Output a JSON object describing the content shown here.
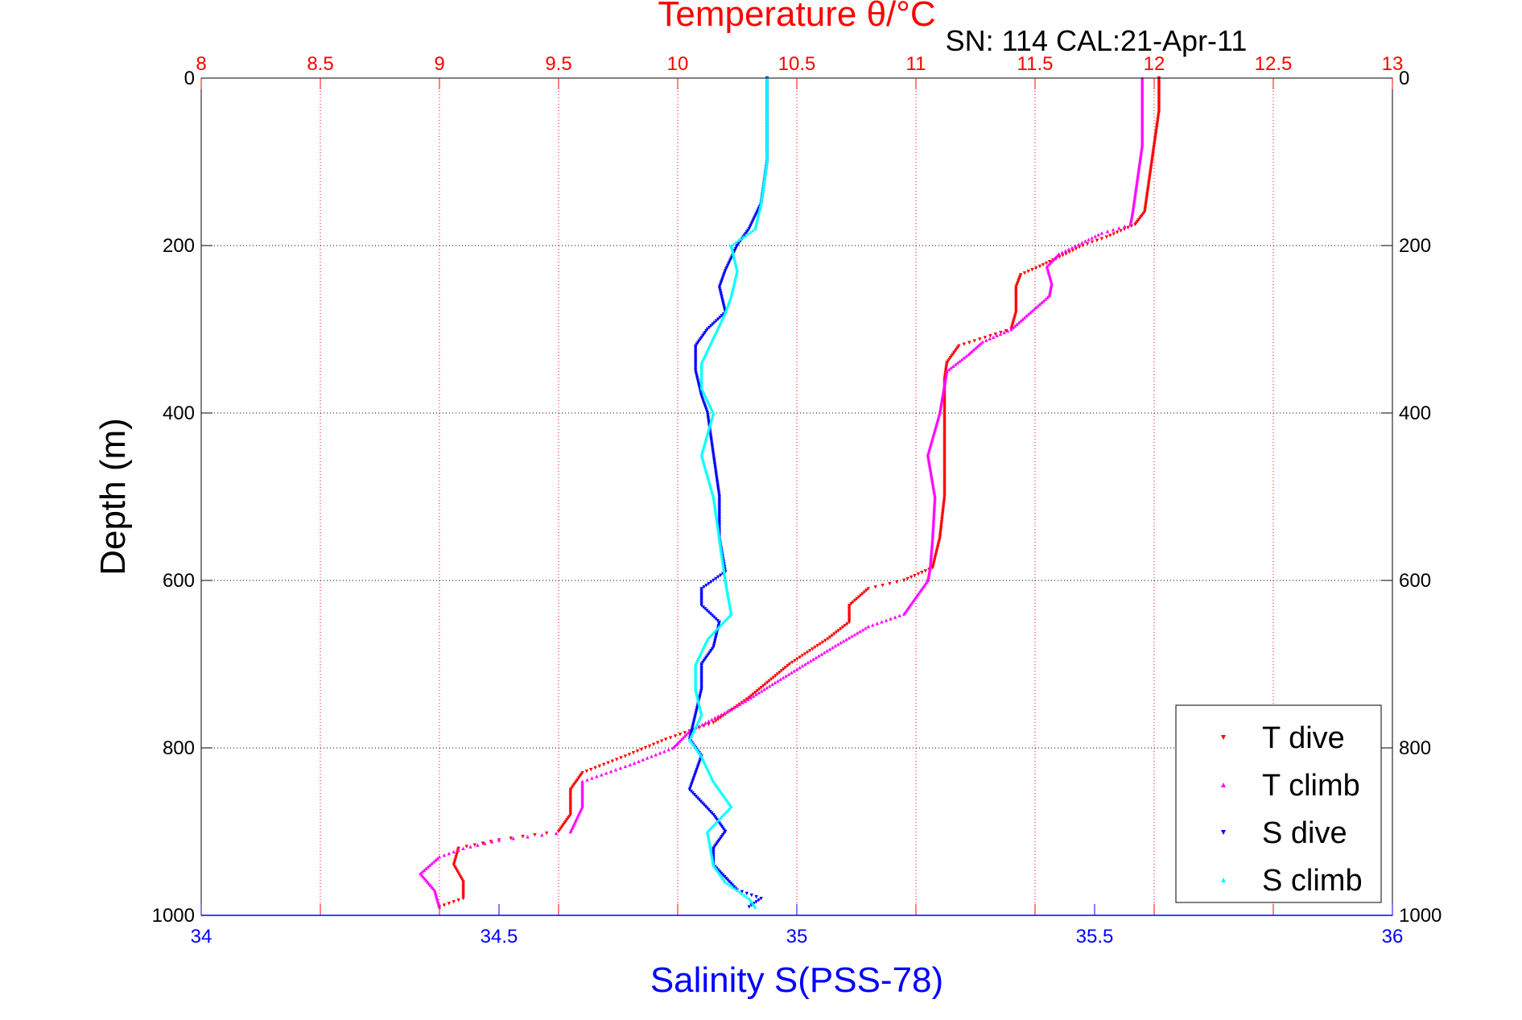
{
  "chart_data": {
    "type": "scatter",
    "title_top": "Temperature θ/°C",
    "subtitle": "SN: 114  CAL:21-Apr-11",
    "xlabel_bottom": "Salinity S(PSS-78)",
    "ylabel": "Depth (m)",
    "top_axis": {
      "label": "Temperature θ/°C",
      "lim": [
        8,
        13
      ],
      "ticks": [
        "8",
        "8.5",
        "9",
        "9.5",
        "10",
        "10.5",
        "11",
        "11.5",
        "12",
        "12.5",
        "13"
      ],
      "color": "#ff0000"
    },
    "bottom_axis": {
      "label": "Salinity S(PSS-78)",
      "lim": [
        34,
        36
      ],
      "ticks": [
        "34",
        "34.5",
        "35",
        "35.5",
        "36"
      ],
      "color": "#0000ff"
    },
    "y_axis": {
      "lim": [
        0,
        1000
      ],
      "reversed": true,
      "ticks": [
        "0",
        "200",
        "400",
        "600",
        "800",
        "1000"
      ]
    },
    "grid": true,
    "legend_position": "bottom-right",
    "series": [
      {
        "name": "T dive",
        "axis": "temperature",
        "color": "#ff0000",
        "marker": "triangle-down",
        "points": [
          [
            12.02,
            0
          ],
          [
            12.02,
            40
          ],
          [
            12.0,
            80
          ],
          [
            11.98,
            120
          ],
          [
            11.96,
            160
          ],
          [
            11.92,
            175
          ],
          [
            11.8,
            190
          ],
          [
            11.7,
            200
          ],
          [
            11.63,
            210
          ],
          [
            11.52,
            225
          ],
          [
            11.44,
            235
          ],
          [
            11.42,
            250
          ],
          [
            11.42,
            280
          ],
          [
            11.4,
            300
          ],
          [
            11.18,
            320
          ],
          [
            11.13,
            340
          ],
          [
            11.12,
            360
          ],
          [
            11.12,
            400
          ],
          [
            11.12,
            450
          ],
          [
            11.12,
            500
          ],
          [
            11.1,
            550
          ],
          [
            11.07,
            585
          ],
          [
            10.95,
            600
          ],
          [
            10.8,
            610
          ],
          [
            10.72,
            630
          ],
          [
            10.72,
            650
          ],
          [
            10.63,
            670
          ],
          [
            10.47,
            700
          ],
          [
            10.3,
            740
          ],
          [
            10.15,
            770
          ],
          [
            9.95,
            790
          ],
          [
            9.78,
            810
          ],
          [
            9.6,
            830
          ],
          [
            9.55,
            850
          ],
          [
            9.55,
            880
          ],
          [
            9.5,
            900
          ],
          [
            9.25,
            910
          ],
          [
            9.08,
            920
          ],
          [
            9.06,
            940
          ],
          [
            9.1,
            960
          ],
          [
            9.1,
            980
          ],
          [
            9.0,
            990
          ]
        ]
      },
      {
        "name": "T climb",
        "axis": "temperature",
        "color": "#ff00ff",
        "marker": "triangle-up",
        "points": [
          [
            11.95,
            0
          ],
          [
            11.95,
            40
          ],
          [
            11.95,
            80
          ],
          [
            11.93,
            120
          ],
          [
            11.91,
            160
          ],
          [
            11.9,
            175
          ],
          [
            11.78,
            185
          ],
          [
            11.6,
            210
          ],
          [
            11.55,
            225
          ],
          [
            11.57,
            245
          ],
          [
            11.56,
            260
          ],
          [
            11.48,
            280
          ],
          [
            11.4,
            300
          ],
          [
            11.28,
            315
          ],
          [
            11.22,
            330
          ],
          [
            11.13,
            350
          ],
          [
            11.1,
            400
          ],
          [
            11.05,
            450
          ],
          [
            11.08,
            500
          ],
          [
            11.07,
            550
          ],
          [
            11.06,
            585
          ],
          [
            11.05,
            600
          ],
          [
            10.95,
            640
          ],
          [
            10.8,
            655
          ],
          [
            10.65,
            680
          ],
          [
            10.42,
            720
          ],
          [
            10.25,
            750
          ],
          [
            10.05,
            780
          ],
          [
            9.98,
            800
          ],
          [
            9.8,
            820
          ],
          [
            9.6,
            840
          ],
          [
            9.6,
            870
          ],
          [
            9.55,
            900
          ],
          [
            9.25,
            910
          ],
          [
            9.1,
            920
          ],
          [
            9.0,
            930
          ],
          [
            8.92,
            950
          ],
          [
            8.98,
            970
          ],
          [
            9.0,
            990
          ]
        ]
      },
      {
        "name": "S dive",
        "axis": "salinity",
        "color": "#0000ff",
        "marker": "triangle-down",
        "points": [
          [
            34.95,
            0
          ],
          [
            34.95,
            50
          ],
          [
            34.95,
            100
          ],
          [
            34.94,
            150
          ],
          [
            34.92,
            180
          ],
          [
            34.9,
            200
          ],
          [
            34.88,
            230
          ],
          [
            34.87,
            250
          ],
          [
            34.88,
            280
          ],
          [
            34.85,
            300
          ],
          [
            34.83,
            320
          ],
          [
            34.83,
            350
          ],
          [
            34.84,
            380
          ],
          [
            34.85,
            400
          ],
          [
            34.86,
            450
          ],
          [
            34.87,
            500
          ],
          [
            34.87,
            550
          ],
          [
            34.88,
            590
          ],
          [
            34.84,
            610
          ],
          [
            34.84,
            630
          ],
          [
            34.87,
            650
          ],
          [
            34.86,
            680
          ],
          [
            34.84,
            700
          ],
          [
            34.84,
            730
          ],
          [
            34.83,
            760
          ],
          [
            34.82,
            790
          ],
          [
            34.84,
            810
          ],
          [
            34.83,
            830
          ],
          [
            34.82,
            850
          ],
          [
            34.86,
            880
          ],
          [
            34.88,
            900
          ],
          [
            34.86,
            920
          ],
          [
            34.86,
            940
          ],
          [
            34.9,
            970
          ],
          [
            34.94,
            980
          ],
          [
            34.92,
            990
          ]
        ]
      },
      {
        "name": "S climb",
        "axis": "salinity",
        "color": "#00ffff",
        "marker": "triangle-up",
        "points": [
          [
            34.95,
            0
          ],
          [
            34.95,
            50
          ],
          [
            34.95,
            100
          ],
          [
            34.94,
            150
          ],
          [
            34.93,
            180
          ],
          [
            34.89,
            200
          ],
          [
            34.9,
            230
          ],
          [
            34.89,
            260
          ],
          [
            34.88,
            280
          ],
          [
            34.86,
            310
          ],
          [
            34.84,
            340
          ],
          [
            34.84,
            370
          ],
          [
            34.86,
            400
          ],
          [
            34.84,
            450
          ],
          [
            34.86,
            500
          ],
          [
            34.87,
            550
          ],
          [
            34.88,
            600
          ],
          [
            34.89,
            640
          ],
          [
            34.85,
            670
          ],
          [
            34.83,
            700
          ],
          [
            34.83,
            730
          ],
          [
            34.84,
            760
          ],
          [
            34.82,
            790
          ],
          [
            34.84,
            810
          ],
          [
            34.86,
            840
          ],
          [
            34.89,
            870
          ],
          [
            34.85,
            900
          ],
          [
            34.86,
            940
          ],
          [
            34.88,
            960
          ],
          [
            34.92,
            980
          ],
          [
            34.93,
            990
          ]
        ]
      }
    ]
  },
  "legend": {
    "items": [
      {
        "label": "T dive",
        "color": "#ff0000",
        "marker": "triangle-down"
      },
      {
        "label": "T climb",
        "color": "#ff00ff",
        "marker": "triangle-up"
      },
      {
        "label": "S dive",
        "color": "#0000ff",
        "marker": "triangle-down"
      },
      {
        "label": "S climb",
        "color": "#00ffff",
        "marker": "triangle-up"
      }
    ]
  }
}
